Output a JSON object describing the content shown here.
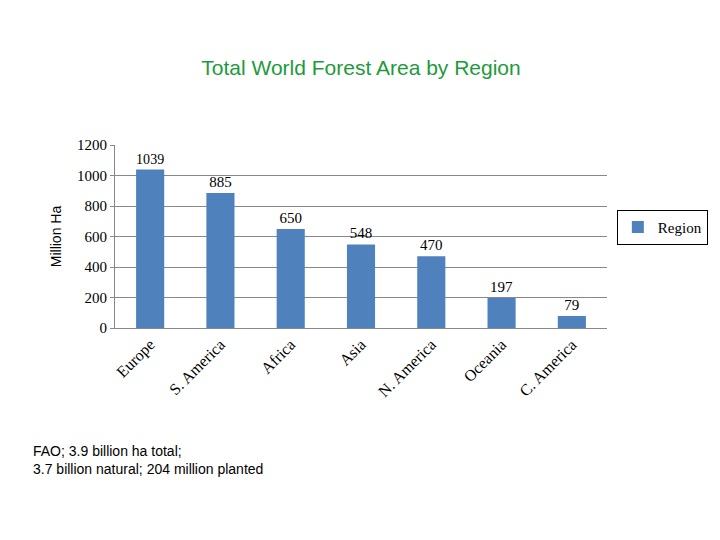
{
  "chart_data": {
    "type": "bar",
    "title": "Total World Forest Area by Region",
    "y_label": "Million Ha",
    "categories": [
      "Europe",
      "S. America",
      "Africa",
      "Asia",
      "N. America",
      "Oceania",
      "C. America"
    ],
    "series": [
      {
        "name": "Region",
        "color": "#4f81bd",
        "values": [
          1039,
          885,
          650,
          548,
          470,
          197,
          79
        ]
      }
    ],
    "ylim": [
      0,
      1200
    ],
    "yticks": [
      0,
      200,
      400,
      600,
      800,
      1000,
      1200
    ],
    "grid": true,
    "legend": "right",
    "data_labels": true,
    "annotations": [
      "FAO; 3.9 billion ha total;",
      "3.7 billion natural; 204 million planted"
    ]
  }
}
